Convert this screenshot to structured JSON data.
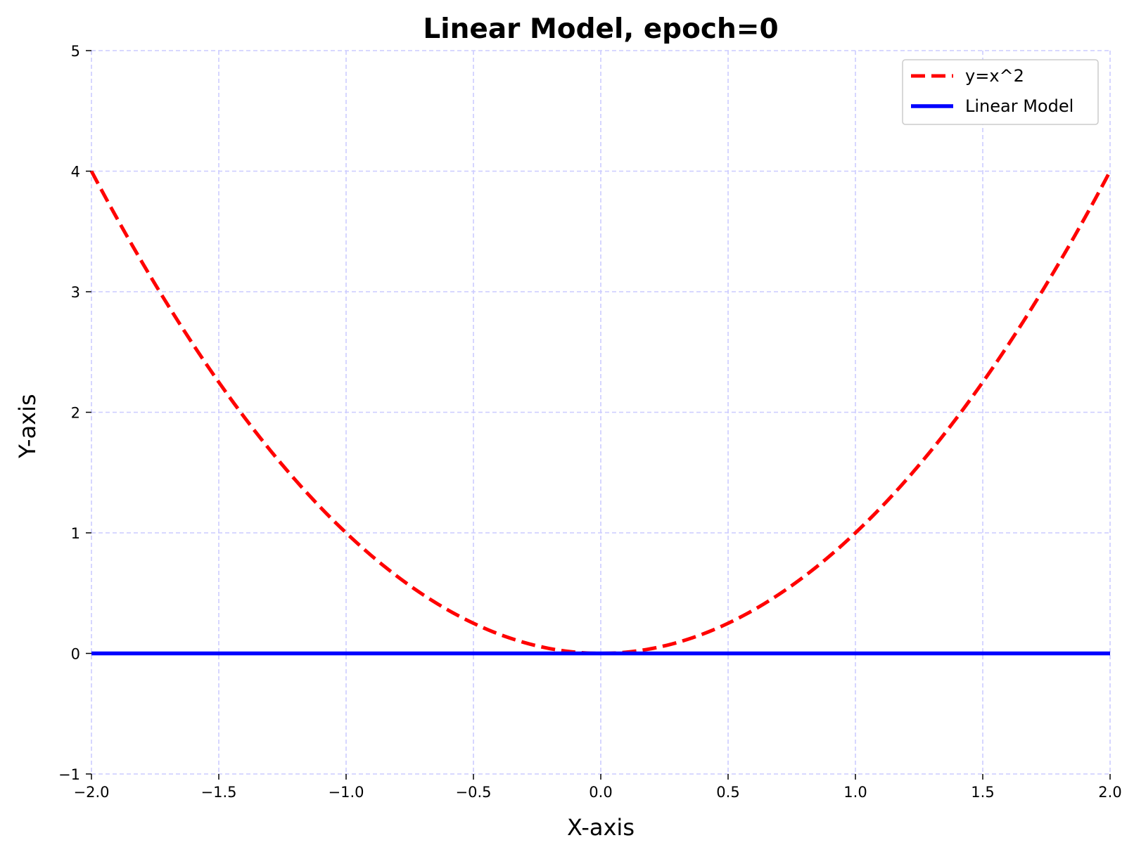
{
  "chart_data": {
    "type": "line",
    "title": "Linear Model, epoch=0",
    "xlabel": "X-axis",
    "ylabel": "Y-axis",
    "xlim": [
      -2.0,
      2.0
    ],
    "ylim": [
      -1,
      5
    ],
    "xticks": [
      -2.0,
      -1.5,
      -1.0,
      -0.5,
      0.0,
      0.5,
      1.0,
      1.5,
      2.0
    ],
    "xtick_labels": [
      "−2.0",
      "−1.5",
      "−1.0",
      "−0.5",
      "0.0",
      "0.5",
      "1.0",
      "1.5",
      "2.0"
    ],
    "yticks": [
      -1,
      0,
      1,
      2,
      3,
      4,
      5
    ],
    "ytick_labels": [
      "−1",
      "0",
      "1",
      "2",
      "3",
      "4",
      "5"
    ],
    "grid": true,
    "legend_position": "top-right",
    "series": [
      {
        "name": "y=x^2",
        "style": "dashed",
        "color": "#ff0000",
        "x": [
          -2.0,
          -1.75,
          -1.5,
          -1.25,
          -1.0,
          -0.75,
          -0.5,
          -0.25,
          0.0,
          0.25,
          0.5,
          0.75,
          1.0,
          1.25,
          1.5,
          1.75,
          2.0
        ],
        "y": [
          4.0,
          3.0625,
          2.25,
          1.5625,
          1.0,
          0.5625,
          0.25,
          0.0625,
          0.0,
          0.0625,
          0.25,
          0.5625,
          1.0,
          1.5625,
          2.25,
          3.0625,
          4.0
        ]
      },
      {
        "name": "Linear Model",
        "style": "solid",
        "color": "#0000ff",
        "x": [
          -2.0,
          2.0
        ],
        "y": [
          0.0,
          0.0
        ]
      }
    ]
  },
  "colors": {
    "grid": "#ccccff",
    "axis": "#000000",
    "quadratic": "#ff0000",
    "linear": "#0000ff"
  }
}
